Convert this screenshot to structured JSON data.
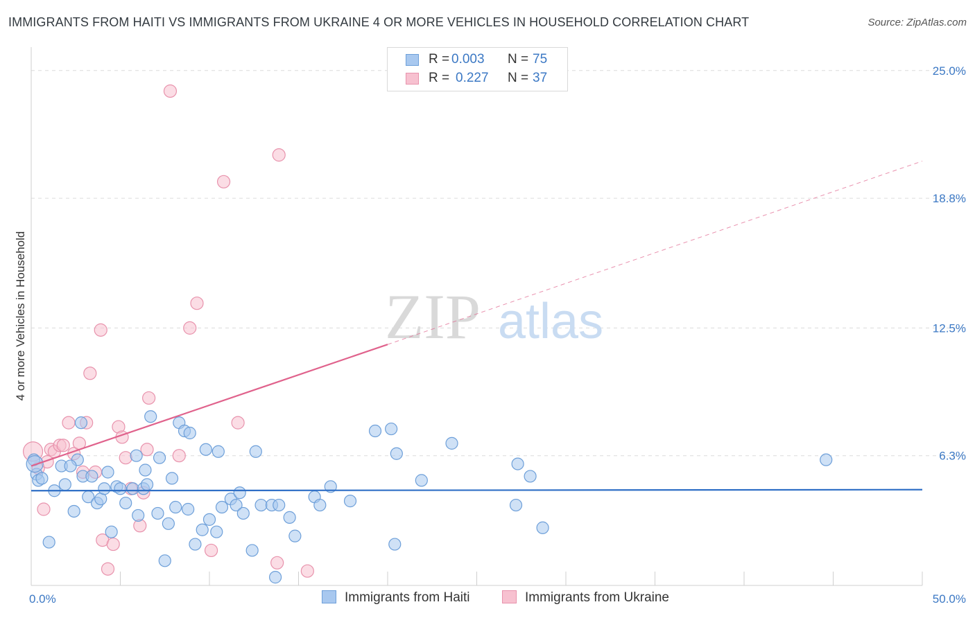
{
  "title": "IMMIGRANTS FROM HAITI VS IMMIGRANTS FROM UKRAINE 4 OR MORE VEHICLES IN HOUSEHOLD CORRELATION CHART",
  "source": "Source: ZipAtlas.com",
  "watermark": {
    "zip": "ZIP",
    "atlas": "atlas"
  },
  "legend": {
    "haiti": {
      "r_label": "R =",
      "r_value": "0.003",
      "n_label": "N =",
      "n_value": "75"
    },
    "ukraine": {
      "r_label": "R =",
      "r_value": "0.227",
      "n_label": "N =",
      "n_value": "37"
    }
  },
  "bottom_legend": {
    "haiti": "Immigrants from Haiti",
    "ukraine": "Immigrants from Ukraine"
  },
  "colors": {
    "haiti_fill": "#a8c8ef",
    "haiti_stroke": "#6d9fd9",
    "haiti_line": "#2f6fc6",
    "ukraine_fill": "#f7c1d0",
    "ukraine_stroke": "#e892ac",
    "ukraine_line": "#e0628c",
    "tick_text": "#3b78c4",
    "grid": "#dcdcdc"
  },
  "chart_data": {
    "type": "scatter",
    "title": "IMMIGRANTS FROM HAITI VS IMMIGRANTS FROM UKRAINE 4 OR MORE VEHICLES IN HOUSEHOLD CORRELATION CHART",
    "xlabel": "",
    "ylabel": "4 or more Vehicles in Household",
    "xlim": [
      0,
      50
    ],
    "ylim": [
      0,
      25.9
    ],
    "x_tick_labels": [
      {
        "value": 0,
        "label": "0.0%"
      },
      {
        "value": 50,
        "label": "50.0%"
      }
    ],
    "y_tick_labels": [
      {
        "value": 6.3,
        "label": "6.3%"
      },
      {
        "value": 12.5,
        "label": "12.5%"
      },
      {
        "value": 18.8,
        "label": "18.8%"
      },
      {
        "value": 25.0,
        "label": "25.0%"
      }
    ],
    "x_minor_ticks": [
      5,
      10,
      15,
      20,
      25,
      30,
      35,
      40,
      45,
      50
    ],
    "grid": true,
    "series": [
      {
        "name": "Immigrants from Haiti",
        "R": 0.003,
        "N": 75,
        "trend": {
          "x": [
            0,
            50
          ],
          "y": [
            4.6,
            4.65
          ],
          "dashed": false
        },
        "points": [
          [
            0.15,
            6.1
          ],
          [
            0.3,
            5.4
          ],
          [
            0.4,
            5.1
          ],
          [
            0.6,
            5.2
          ],
          [
            1.0,
            2.1
          ],
          [
            1.3,
            4.6
          ],
          [
            1.7,
            5.8
          ],
          [
            1.9,
            4.9
          ],
          [
            2.4,
            3.6
          ],
          [
            2.8,
            7.9
          ],
          [
            2.6,
            6.1
          ],
          [
            2.2,
            5.8
          ],
          [
            2.9,
            5.3
          ],
          [
            3.4,
            5.3
          ],
          [
            3.2,
            4.3
          ],
          [
            3.7,
            4.0
          ],
          [
            3.9,
            4.2
          ],
          [
            4.1,
            4.7
          ],
          [
            4.3,
            5.5
          ],
          [
            4.5,
            2.6
          ],
          [
            4.8,
            4.8
          ],
          [
            5.0,
            4.7
          ],
          [
            5.3,
            4.0
          ],
          [
            5.7,
            4.7
          ],
          [
            5.9,
            6.3
          ],
          [
            6.0,
            3.4
          ],
          [
            6.3,
            4.7
          ],
          [
            6.4,
            5.6
          ],
          [
            6.5,
            4.9
          ],
          [
            6.7,
            8.2
          ],
          [
            7.1,
            3.5
          ],
          [
            7.2,
            6.2
          ],
          [
            7.5,
            1.2
          ],
          [
            7.7,
            3.0
          ],
          [
            7.9,
            5.2
          ],
          [
            8.1,
            3.8
          ],
          [
            8.3,
            7.9
          ],
          [
            8.6,
            7.5
          ],
          [
            8.8,
            3.7
          ],
          [
            8.9,
            7.4
          ],
          [
            9.2,
            2.0
          ],
          [
            9.6,
            2.7
          ],
          [
            9.8,
            6.6
          ],
          [
            10.0,
            3.2
          ],
          [
            10.4,
            2.6
          ],
          [
            10.5,
            6.5
          ],
          [
            10.7,
            3.8
          ],
          [
            11.2,
            4.2
          ],
          [
            11.5,
            3.9
          ],
          [
            11.7,
            4.5
          ],
          [
            11.9,
            3.5
          ],
          [
            12.4,
            1.7
          ],
          [
            12.6,
            6.5
          ],
          [
            12.9,
            3.9
          ],
          [
            13.5,
            3.9
          ],
          [
            13.7,
            0.4
          ],
          [
            13.9,
            3.9
          ],
          [
            14.5,
            3.3
          ],
          [
            14.8,
            2.4
          ],
          [
            15.9,
            4.3
          ],
          [
            16.2,
            3.9
          ],
          [
            16.8,
            4.8
          ],
          [
            17.9,
            4.1
          ],
          [
            19.3,
            7.5
          ],
          [
            20.2,
            7.6
          ],
          [
            20.4,
            2.0
          ],
          [
            20.5,
            6.4
          ],
          [
            21.9,
            5.1
          ],
          [
            23.6,
            6.9
          ],
          [
            27.2,
            3.9
          ],
          [
            27.3,
            5.9
          ],
          [
            28.0,
            5.3
          ],
          [
            28.7,
            2.8
          ],
          [
            44.6,
            6.1
          ],
          [
            0.2,
            5.9
          ]
        ]
      },
      {
        "name": "Immigrants from Ukraine",
        "R": 0.227,
        "N": 37,
        "trend": {
          "x": [
            0,
            20.0
          ],
          "y": [
            5.8,
            11.7
          ],
          "dashed": false
        },
        "trend_extension": {
          "x": [
            20.0,
            50
          ],
          "y": [
            11.7,
            20.6
          ],
          "dashed": true
        },
        "points": [
          [
            0.1,
            6.5
          ],
          [
            0.4,
            5.7
          ],
          [
            0.7,
            3.7
          ],
          [
            0.9,
            6.0
          ],
          [
            1.1,
            6.6
          ],
          [
            1.3,
            6.5
          ],
          [
            1.6,
            6.8
          ],
          [
            1.8,
            6.8
          ],
          [
            2.1,
            7.9
          ],
          [
            2.4,
            6.4
          ],
          [
            2.7,
            6.9
          ],
          [
            2.9,
            5.5
          ],
          [
            3.1,
            7.9
          ],
          [
            3.3,
            10.3
          ],
          [
            3.6,
            5.5
          ],
          [
            3.9,
            12.4
          ],
          [
            4.0,
            2.2
          ],
          [
            4.3,
            0.8
          ],
          [
            4.6,
            2.0
          ],
          [
            4.9,
            7.7
          ],
          [
            5.1,
            7.2
          ],
          [
            5.3,
            6.2
          ],
          [
            5.6,
            4.7
          ],
          [
            6.1,
            2.9
          ],
          [
            6.3,
            4.5
          ],
          [
            6.5,
            6.6
          ],
          [
            6.6,
            9.1
          ],
          [
            7.8,
            24.0
          ],
          [
            8.3,
            6.3
          ],
          [
            8.9,
            12.5
          ],
          [
            9.3,
            13.7
          ],
          [
            10.1,
            1.7
          ],
          [
            10.8,
            19.6
          ],
          [
            11.6,
            7.9
          ],
          [
            13.8,
            1.1
          ],
          [
            13.9,
            20.9
          ],
          [
            15.5,
            0.7
          ]
        ]
      }
    ]
  }
}
